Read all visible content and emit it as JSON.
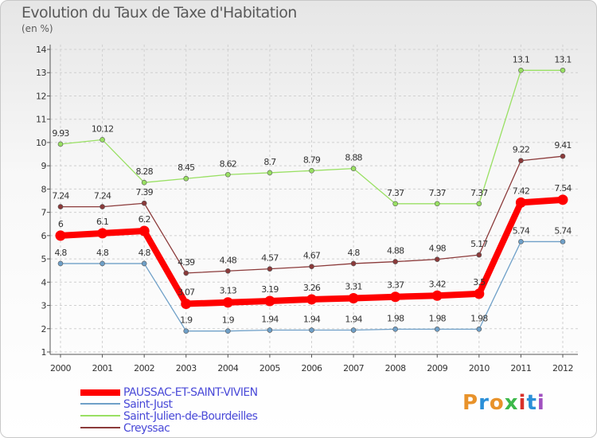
{
  "title": "Evolution du Taux de Taxe d'Habitation",
  "subtitle": "(en %)",
  "logo": {
    "text": "Proxiti",
    "colors": [
      "#e8922a",
      "#2a8fd8",
      "#e8922a",
      "#3cb84a",
      "#d8302a",
      "#2a8fd8",
      "#a050c0"
    ]
  },
  "chart_data": {
    "type": "line",
    "x": [
      "2000",
      "2001",
      "2002",
      "2003",
      "2004",
      "2005",
      "2006",
      "2007",
      "2008",
      "2009",
      "2010",
      "2011",
      "2012"
    ],
    "ylim": [
      1,
      14
    ],
    "yticks": [
      "1",
      "2",
      "3",
      "4",
      "5",
      "6",
      "7",
      "8",
      "9",
      "10",
      "11",
      "12",
      "13",
      "14"
    ],
    "grid": true,
    "legend_position": "bottom-left",
    "series": [
      {
        "name": "PAUSSAC-ET-SAINT-VIVIEN",
        "color": "#ff0000",
        "values": [
          6,
          6.1,
          6.2,
          3.07,
          3.13,
          3.19,
          3.26,
          3.31,
          3.37,
          3.42,
          3.5,
          7.42,
          7.54
        ],
        "labels": [
          "6",
          "6.1",
          "6.2",
          "3.07",
          "3.13",
          "3.19",
          "3.26",
          "3.31",
          "3.37",
          "3.42",
          "3.5",
          "7.42",
          "7.54"
        ]
      },
      {
        "name": "Saint-Just",
        "color": "#6fa0c8",
        "values": [
          4.8,
          4.8,
          4.8,
          1.9,
          1.9,
          1.94,
          1.94,
          1.94,
          1.98,
          1.98,
          1.98,
          5.74,
          5.74
        ],
        "labels": [
          "4.8",
          "4.8",
          "4.8",
          "1.9",
          "1.9",
          "1.94",
          "1.94",
          "1.94",
          "1.98",
          "1.98",
          "1.98",
          "5.74",
          "5.74"
        ]
      },
      {
        "name": "Saint-Julien-de-Bourdeilles",
        "color": "#99e063",
        "values": [
          9.93,
          10.12,
          8.28,
          8.45,
          8.62,
          8.7,
          8.79,
          8.88,
          7.37,
          7.37,
          7.37,
          13.1,
          13.1
        ],
        "labels": [
          "9.93",
          "10.12",
          "8.28",
          "8.45",
          "8.62",
          "8.7",
          "8.79",
          "8.88",
          "7.37",
          "7.37",
          "7.37",
          "13.1",
          "13.1"
        ]
      },
      {
        "name": "Creyssac",
        "color": "#8b3a3a",
        "values": [
          7.24,
          7.24,
          7.39,
          4.39,
          4.48,
          4.57,
          4.67,
          4.8,
          4.88,
          4.98,
          5.17,
          9.22,
          9.41
        ],
        "labels": [
          "7.24",
          "7.24",
          "7.39",
          "4.39",
          "4.48",
          "4.57",
          "4.67",
          "4.8",
          "4.88",
          "4.98",
          "5.17",
          "9.22",
          "9.41"
        ]
      }
    ]
  }
}
